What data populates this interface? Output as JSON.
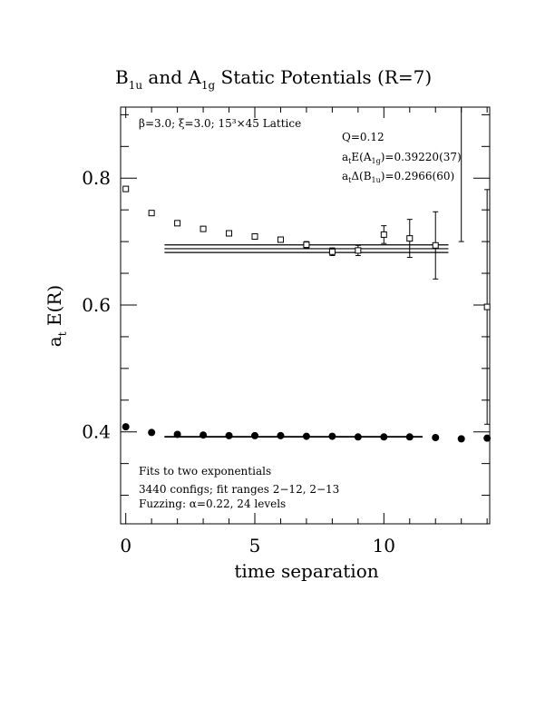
{
  "chart_data": {
    "type": "scatter",
    "title_parts": {
      "a": "B",
      "a_sub": "1u",
      "b": " and A",
      "b_sub": "1g",
      "c": " Static Potentials (R=7)"
    },
    "xlabel": "time separation",
    "ylabel_main": "a",
    "ylabel_sub": "t",
    "ylabel_tail": " E(R)",
    "xlim": [
      -0.2,
      14.1
    ],
    "ylim": [
      0.255,
      0.912
    ],
    "x_ticks": [
      0,
      5,
      10
    ],
    "x_tick_labels": [
      "0",
      "5",
      "10"
    ],
    "y_ticks": [
      0.4,
      0.6,
      0.8
    ],
    "y_tick_labels": [
      "0.4",
      "0.6",
      "0.8"
    ],
    "annotations": {
      "lattice": "β=3.0; ξ=3.0; 15³×45 Lattice",
      "q": "Q=0.12",
      "a1g_energy_label": "a",
      "a1g_energy_sub1": "t",
      "a1g_energy_mid": "E(A",
      "a1g_energy_sub2": "1g",
      "a1g_energy_val": ")=0.39220(37)",
      "b1u_gap_label": "a",
      "b1u_gap_sub1": "t",
      "b1u_gap_mid": "Δ(B",
      "b1u_gap_sub2": "1u",
      "b1u_gap_val": ")=0.2966(60)",
      "fits": "Fits to two exponentials",
      "configs": "3440 configs; fit ranges 2−12, 2−13",
      "fuzzing": "Fuzzing: α=0.22, 24 levels"
    },
    "series": [
      {
        "name": "B1u",
        "marker": "open-square",
        "x": [
          0,
          1,
          2,
          3,
          4,
          5,
          6,
          7,
          8,
          9,
          10,
          11,
          12,
          13,
          14
        ],
        "y": [
          0.783,
          0.745,
          0.729,
          0.72,
          0.713,
          0.708,
          0.703,
          0.695,
          0.684,
          0.686,
          0.711,
          0.705,
          0.694,
          1.0,
          0.597
        ],
        "err": [
          0.002,
          0.002,
          0.002,
          0.003,
          0.003,
          0.004,
          0.004,
          0.005,
          0.006,
          0.008,
          0.014,
          0.03,
          0.053,
          0.3,
          0.185
        ]
      },
      {
        "name": "A1g",
        "marker": "filled-circle",
        "x": [
          0,
          1,
          2,
          3,
          4,
          5,
          6,
          7,
          8,
          9,
          10,
          11,
          12,
          13,
          14
        ],
        "y": [
          0.408,
          0.399,
          0.396,
          0.395,
          0.394,
          0.394,
          0.394,
          0.393,
          0.393,
          0.392,
          0.392,
          0.392,
          0.391,
          0.389,
          0.39
        ],
        "err": [
          0.001,
          0.001,
          0.001,
          0.001,
          0.001,
          0.001,
          0.001,
          0.001,
          0.001,
          0.001,
          0.001,
          0.001,
          0.001,
          0.001,
          0.001
        ]
      }
    ],
    "fits": [
      {
        "name": "B1u fit",
        "x_range": [
          1.5,
          12.5
        ],
        "center": 0.6888,
        "band": 0.006
      },
      {
        "name": "A1g fit",
        "x_range": [
          1.5,
          11.5
        ],
        "center": 0.3922,
        "band": 0.0004
      }
    ]
  }
}
